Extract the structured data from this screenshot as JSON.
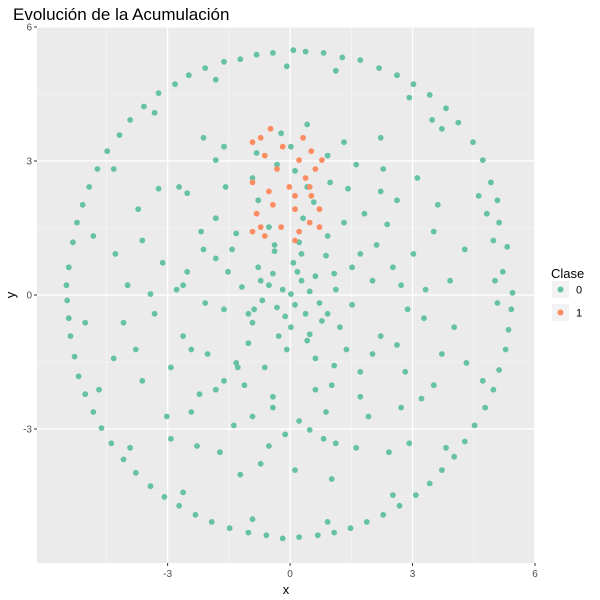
{
  "chart_data": {
    "type": "scatter",
    "title": "Evolución de la Acumulación",
    "xlabel": "x",
    "ylabel": "y",
    "xlim": [
      -6.2,
      6.0
    ],
    "ylim": [
      -6.0,
      6.0
    ],
    "grid": true,
    "xticks": [
      -3,
      0,
      3,
      6
    ],
    "xtick_labels": [
      "-3",
      "0",
      "3",
      "6"
    ],
    "yticks": [
      -3,
      0,
      3,
      6
    ],
    "ytick_labels": [
      "-3",
      "0",
      "3",
      "6"
    ],
    "legend": {
      "title": "Clase",
      "placement": "right"
    },
    "series": [
      {
        "name": "0",
        "color": "#66c2a5",
        "points": [
          [
            5.45,
            0.05
          ],
          [
            5.32,
            1.08
          ],
          [
            5.08,
            2.12
          ],
          [
            4.72,
            3.02
          ],
          [
            4.12,
            3.86
          ],
          [
            3.42,
            4.48
          ],
          [
            2.62,
            4.92
          ],
          [
            1.72,
            5.26
          ],
          [
            0.82,
            5.42
          ],
          [
            0.08,
            5.48
          ],
          [
            -0.82,
            5.38
          ],
          [
            -1.62,
            5.22
          ],
          [
            -2.48,
            4.92
          ],
          [
            -3.22,
            4.52
          ],
          [
            -3.92,
            3.92
          ],
          [
            -4.48,
            3.22
          ],
          [
            -4.92,
            2.42
          ],
          [
            -5.22,
            1.62
          ],
          [
            -5.42,
            0.62
          ],
          [
            -5.46,
            -0.12
          ],
          [
            -5.38,
            -0.92
          ],
          [
            -5.18,
            -1.82
          ],
          [
            -4.82,
            -2.62
          ],
          [
            -4.38,
            -3.32
          ],
          [
            -3.78,
            -3.98
          ],
          [
            -3.08,
            -4.52
          ],
          [
            -2.32,
            -4.92
          ],
          [
            -1.48,
            -5.22
          ],
          [
            -0.58,
            -5.38
          ],
          [
            0.22,
            -5.42
          ],
          [
            1.08,
            -5.32
          ],
          [
            1.88,
            -5.08
          ],
          [
            2.68,
            -4.72
          ],
          [
            3.42,
            -4.22
          ],
          [
            4.02,
            -3.62
          ],
          [
            4.52,
            -2.92
          ],
          [
            4.98,
            -2.12
          ],
          [
            5.28,
            -1.22
          ],
          [
            5.42,
            -0.32
          ],
          [
            5.21,
            0.52
          ],
          [
            5.12,
            1.62
          ],
          [
            4.92,
            2.52
          ],
          [
            4.48,
            3.42
          ],
          [
            3.82,
            4.18
          ],
          [
            3.02,
            4.72
          ],
          [
            2.18,
            5.08
          ],
          [
            1.28,
            5.32
          ],
          [
            0.38,
            5.45
          ],
          [
            -0.42,
            5.42
          ],
          [
            -1.22,
            5.28
          ],
          [
            -2.08,
            5.08
          ],
          [
            -2.82,
            4.72
          ],
          [
            -3.58,
            4.22
          ],
          [
            -4.18,
            3.58
          ],
          [
            -4.72,
            2.82
          ],
          [
            -5.08,
            2.02
          ],
          [
            -5.32,
            1.18
          ],
          [
            -5.48,
            0.22
          ],
          [
            -5.42,
            -0.52
          ],
          [
            -5.28,
            -1.38
          ],
          [
            -5.02,
            -2.22
          ],
          [
            -4.62,
            -2.98
          ],
          [
            -4.08,
            -3.68
          ],
          [
            -3.42,
            -4.28
          ],
          [
            -2.72,
            -4.72
          ],
          [
            -1.92,
            -5.08
          ],
          [
            -1.02,
            -5.32
          ],
          [
            -0.18,
            -5.45
          ],
          [
            0.68,
            -5.38
          ],
          [
            1.48,
            -5.22
          ],
          [
            2.28,
            -4.92
          ],
          [
            3.08,
            -4.48
          ],
          [
            3.72,
            -3.92
          ],
          [
            4.28,
            -3.28
          ],
          [
            4.78,
            -2.52
          ],
          [
            5.12,
            -1.68
          ],
          [
            5.35,
            -0.78
          ],
          [
            5.02,
            0.32
          ],
          [
            4.98,
            1.22
          ],
          [
            4.62,
            2.22
          ],
          [
            3.72,
            3.72
          ],
          [
            2.92,
            4.42
          ],
          [
            1.12,
            5.02
          ],
          [
            -0.08,
            5.12
          ],
          [
            -1.82,
            4.82
          ],
          [
            -3.32,
            4.08
          ],
          [
            -4.32,
            2.82
          ],
          [
            -4.82,
            1.32
          ],
          [
            -5.02,
            -0.62
          ],
          [
            -4.68,
            -2.12
          ],
          [
            -3.92,
            -3.42
          ],
          [
            -2.62,
            -4.42
          ],
          [
            -0.92,
            -5.02
          ],
          [
            0.92,
            -5.08
          ],
          [
            2.52,
            -4.48
          ],
          [
            3.82,
            -3.42
          ],
          [
            4.72,
            -1.92
          ],
          [
            5.08,
            -0.18
          ],
          [
            4.82,
            1.82
          ],
          [
            3.48,
            3.92
          ],
          [
            0.02,
            0.02
          ],
          [
            0.12,
            -0.22
          ],
          [
            -0.18,
            0.12
          ],
          [
            0.28,
            0.32
          ],
          [
            -0.32,
            -0.28
          ],
          [
            0.48,
            0.08
          ],
          [
            -0.52,
            0.22
          ],
          [
            0.18,
            0.52
          ],
          [
            -0.12,
            -0.48
          ],
          [
            0.38,
            -0.42
          ],
          [
            -0.42,
            0.48
          ],
          [
            0.62,
            0.42
          ],
          [
            -0.68,
            -0.12
          ],
          [
            0.08,
            0.72
          ],
          [
            0.02,
            -0.72
          ],
          [
            0.72,
            -0.18
          ],
          [
            -0.78,
            0.62
          ],
          [
            0.88,
            0.88
          ],
          [
            -0.92,
            -0.62
          ],
          [
            0.48,
            -0.88
          ],
          [
            -0.38,
            0.98
          ],
          [
            1.12,
            0.12
          ],
          [
            -1.18,
            0.18
          ],
          [
            0.22,
            1.18
          ],
          [
            -0.08,
            -1.22
          ],
          [
            1.22,
            -0.72
          ],
          [
            -1.02,
            -1.08
          ],
          [
            0.92,
            1.32
          ],
          [
            -1.42,
            1.02
          ],
          [
            1.52,
            -0.22
          ],
          [
            -1.62,
            -0.32
          ],
          [
            0.32,
            1.72
          ],
          [
            -0.62,
            -1.62
          ],
          [
            1.72,
            0.92
          ],
          [
            -1.82,
            0.82
          ],
          [
            1.08,
            -1.58
          ],
          [
            -1.28,
            -1.62
          ],
          [
            2.02,
            0.32
          ],
          [
            -2.08,
            -0.18
          ],
          [
            0.58,
            2.08
          ],
          [
            -0.78,
            2.12
          ],
          [
            0.62,
            -2.12
          ],
          [
            -0.42,
            -2.28
          ],
          [
            2.22,
            -0.92
          ],
          [
            -2.18,
            1.42
          ],
          [
            2.38,
            1.58
          ],
          [
            -2.42,
            -1.22
          ],
          [
            1.42,
            2.38
          ],
          [
            -1.58,
            2.42
          ],
          [
            1.72,
            -2.28
          ],
          [
            -1.82,
            -2.12
          ],
          [
            2.72,
            0.22
          ],
          [
            -2.78,
            0.12
          ],
          [
            0.12,
            2.78
          ],
          [
            0.22,
            -2.82
          ],
          [
            2.82,
            -1.72
          ],
          [
            -2.92,
            -1.62
          ],
          [
            2.62,
            2.12
          ],
          [
            -2.52,
            2.28
          ],
          [
            1.92,
            -2.72
          ],
          [
            -1.38,
            -2.92
          ],
          [
            3.02,
            0.92
          ],
          [
            -3.12,
            0.72
          ],
          [
            0.92,
            3.12
          ],
          [
            -0.82,
            3.18
          ],
          [
            0.82,
            -3.22
          ],
          [
            -0.52,
            -3.38
          ],
          [
            3.28,
            -0.52
          ],
          [
            -3.32,
            -0.42
          ],
          [
            2.28,
            2.82
          ],
          [
            -2.72,
            2.42
          ],
          [
            2.72,
            -2.52
          ],
          [
            -2.42,
            -2.62
          ],
          [
            3.52,
            1.42
          ],
          [
            -3.62,
            1.22
          ],
          [
            1.32,
            3.42
          ],
          [
            -1.62,
            3.32
          ],
          [
            1.62,
            -3.42
          ],
          [
            -1.72,
            -3.52
          ],
          [
            3.72,
            -1.32
          ],
          [
            -3.78,
            -1.22
          ],
          [
            3.12,
            2.62
          ],
          [
            -3.22,
            2.38
          ],
          [
            3.22,
            -2.32
          ],
          [
            -3.02,
            -2.72
          ],
          [
            3.92,
            0.32
          ],
          [
            -3.98,
            0.22
          ],
          [
            0.42,
            3.82
          ],
          [
            -0.22,
            3.62
          ],
          [
            0.12,
            -3.92
          ],
          [
            -0.72,
            -3.78
          ],
          [
            4.02,
            -0.72
          ],
          [
            -4.08,
            -0.62
          ],
          [
            2.22,
            3.52
          ],
          [
            -2.12,
            3.52
          ],
          [
            2.42,
            -3.52
          ],
          [
            -2.28,
            -3.38
          ],
          [
            3.62,
            2.02
          ],
          [
            -3.72,
            1.92
          ],
          [
            3.52,
            -2.02
          ],
          [
            -3.62,
            -1.92
          ],
          [
            4.28,
            1.02
          ],
          [
            -4.28,
            0.92
          ],
          [
            1.02,
            -4.12
          ],
          [
            -1.22,
            -4.02
          ],
          [
            4.32,
            -1.52
          ],
          [
            -4.32,
            -1.42
          ],
          [
            2.92,
            -3.32
          ],
          [
            -2.92,
            -3.22
          ],
          [
            1.52,
            0.62
          ],
          [
            -1.52,
            0.52
          ],
          [
            0.62,
            -1.42
          ],
          [
            -0.52,
            1.52
          ],
          [
            1.38,
            -1.22
          ],
          [
            -1.32,
            1.38
          ],
          [
            1.08,
            0.48
          ],
          [
            -1.02,
            -0.42
          ],
          [
            0.42,
            -1.02
          ],
          [
            -0.38,
            1.12
          ],
          [
            0.78,
            -0.58
          ],
          [
            -0.72,
            0.32
          ],
          [
            0.28,
            0.92
          ],
          [
            -0.28,
            -0.92
          ],
          [
            0.92,
            -0.42
          ],
          [
            -0.88,
            -0.32
          ],
          [
            2.12,
            1.12
          ],
          [
            -2.12,
            1.02
          ],
          [
            1.02,
            -2.02
          ],
          [
            -1.12,
            -2.02
          ],
          [
            2.62,
            -1.12
          ],
          [
            -2.62,
            -0.92
          ],
          [
            1.82,
            1.82
          ],
          [
            -1.82,
            1.72
          ],
          [
            1.72,
            -1.72
          ],
          [
            -1.62,
            -1.92
          ],
          [
            0.98,
            2.52
          ],
          [
            -0.92,
            2.62
          ],
          [
            0.88,
            -2.62
          ],
          [
            -0.92,
            -2.72
          ],
          [
            2.52,
            0.62
          ],
          [
            -2.52,
            0.52
          ],
          [
            3.32,
            0.12
          ],
          [
            -3.42,
            0.02
          ],
          [
            0.02,
            3.32
          ],
          [
            -0.12,
            -3.12
          ],
          [
            2.02,
            -1.32
          ],
          [
            -2.02,
            -1.32
          ],
          [
            1.32,
            1.62
          ],
          [
            -1.32,
            -1.52
          ],
          [
            0.42,
            2.42
          ],
          [
            -0.42,
            -2.52
          ],
          [
            -1.82,
            3.02
          ],
          [
            1.62,
            2.92
          ],
          [
            -2.62,
            0.22
          ],
          [
            2.88,
            -0.32
          ],
          [
            0.48,
            -3.02
          ],
          [
            -0.32,
            2.92
          ],
          [
            -2.22,
            -2.22
          ],
          [
            2.22,
            2.32
          ],
          [
            1.12,
            -3.32
          ]
        ]
      },
      {
        "name": "1",
        "color": "#fc8d62",
        "points": [
          [
            -0.72,
            3.52
          ],
          [
            -0.48,
            3.72
          ],
          [
            -0.92,
            3.42
          ],
          [
            -0.18,
            3.32
          ],
          [
            -0.62,
            3.12
          ],
          [
            0.32,
            3.52
          ],
          [
            0.52,
            3.22
          ],
          [
            -0.92,
            2.52
          ],
          [
            -0.52,
            2.32
          ],
          [
            -0.02,
            2.42
          ],
          [
            0.38,
            2.62
          ],
          [
            0.62,
            2.82
          ],
          [
            0.78,
            3.02
          ],
          [
            -0.82,
            1.82
          ],
          [
            -0.42,
            2.02
          ],
          [
            0.12,
            1.92
          ],
          [
            0.52,
            2.22
          ],
          [
            0.72,
            1.92
          ],
          [
            -0.92,
            1.42
          ],
          [
            -0.62,
            1.32
          ],
          [
            -0.22,
            1.52
          ],
          [
            0.22,
            1.42
          ],
          [
            0.48,
            1.62
          ],
          [
            0.72,
            1.52
          ],
          [
            0.12,
            1.22
          ],
          [
            -0.72,
            1.52
          ],
          [
            0.12,
            2.22
          ],
          [
            -0.32,
            2.82
          ],
          [
            0.22,
            3.02
          ],
          [
            0.48,
            2.42
          ]
        ]
      }
    ]
  }
}
